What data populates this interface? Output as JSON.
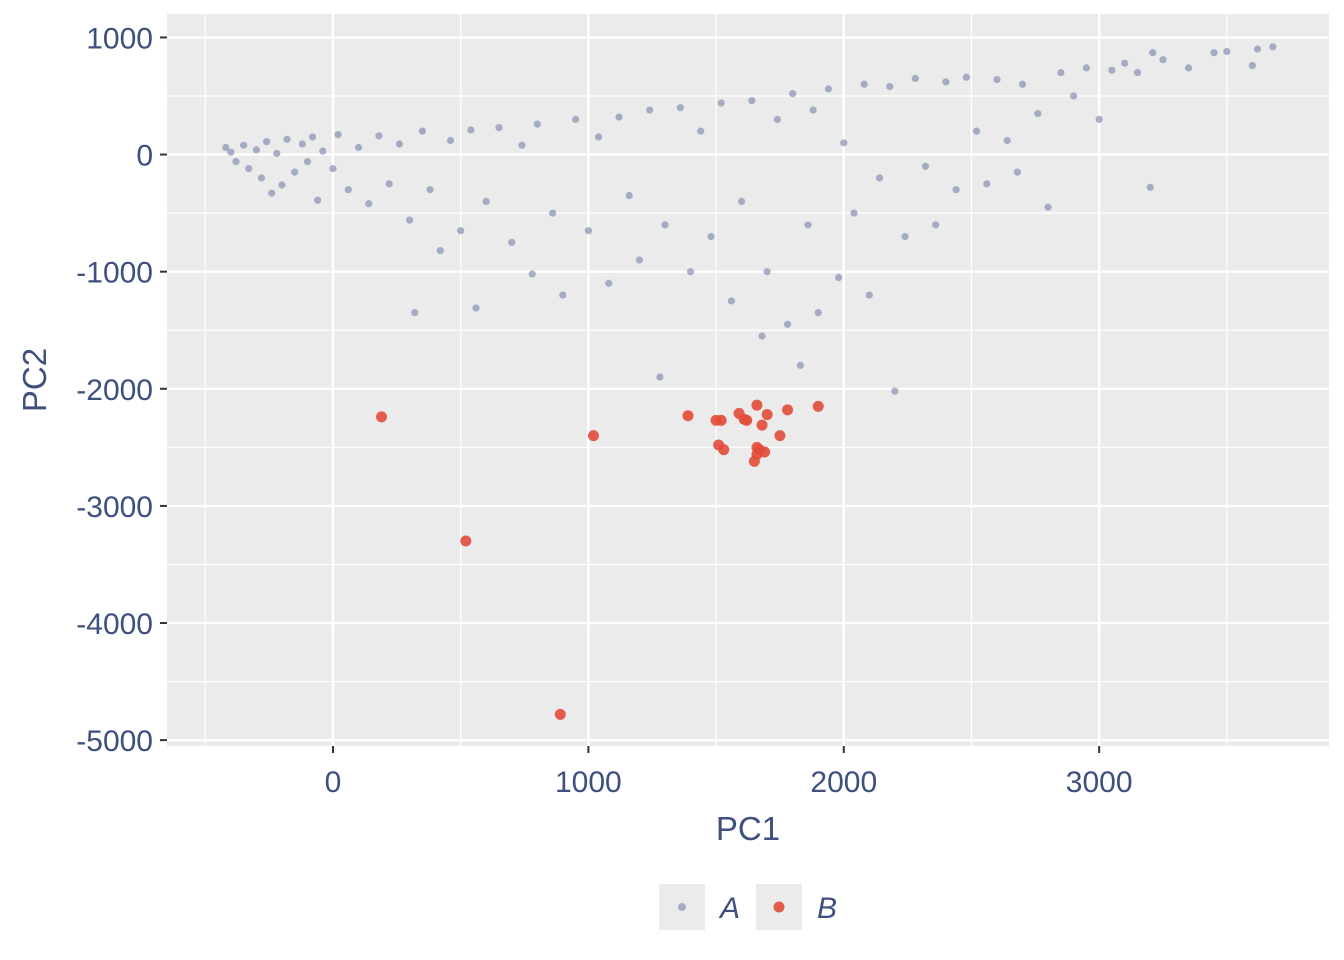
{
  "chart_data": {
    "type": "scatter",
    "title": "",
    "xlabel": "PC1",
    "ylabel": "PC2",
    "xlim": [
      -650,
      3900
    ],
    "ylim": [
      -5050,
      1200
    ],
    "x_major_ticks": [
      0,
      1000,
      2000,
      3000
    ],
    "x_minor_ticks": [
      -500,
      500,
      1500,
      2500,
      3500
    ],
    "y_major_ticks": [
      1000,
      0,
      -1000,
      -2000,
      -3000,
      -4000,
      -5000
    ],
    "y_minor_ticks": [
      500,
      -500,
      -1500,
      -2500,
      -3500,
      -4500
    ],
    "x_tick_labels": [
      "0",
      "1000",
      "2000",
      "3000"
    ],
    "y_tick_labels": [
      "1000",
      "0",
      "-1000",
      "-2000",
      "-3000",
      "-4000",
      "-5000"
    ],
    "grid": true,
    "panel_background": "#ebebeb",
    "legend_position": "bottom",
    "series": [
      {
        "name": "A",
        "color": "#8692b4",
        "point_size": "small",
        "alpha": 0.7,
        "note_dense": "dense wedge-shaped cloud of several thousand points; representative points listed",
        "points": [
          [
            -420,
            60
          ],
          [
            -400,
            20
          ],
          [
            -380,
            -60
          ],
          [
            -350,
            80
          ],
          [
            -330,
            -120
          ],
          [
            -300,
            40
          ],
          [
            -280,
            -200
          ],
          [
            -260,
            110
          ],
          [
            -240,
            -330
          ],
          [
            -220,
            10
          ],
          [
            -200,
            -260
          ],
          [
            -180,
            130
          ],
          [
            -150,
            -150
          ],
          [
            -120,
            90
          ],
          [
            -100,
            -60
          ],
          [
            -80,
            150
          ],
          [
            -60,
            -390
          ],
          [
            -40,
            30
          ],
          [
            0,
            -120
          ],
          [
            20,
            170
          ],
          [
            60,
            -300
          ],
          [
            100,
            60
          ],
          [
            140,
            -420
          ],
          [
            180,
            160
          ],
          [
            220,
            -250
          ],
          [
            260,
            90
          ],
          [
            300,
            -560
          ],
          [
            320,
            -1350
          ],
          [
            350,
            200
          ],
          [
            380,
            -300
          ],
          [
            420,
            -820
          ],
          [
            460,
            120
          ],
          [
            500,
            -650
          ],
          [
            540,
            210
          ],
          [
            560,
            -1310
          ],
          [
            600,
            -400
          ],
          [
            650,
            230
          ],
          [
            700,
            -750
          ],
          [
            740,
            80
          ],
          [
            780,
            -1020
          ],
          [
            800,
            260
          ],
          [
            860,
            -500
          ],
          [
            900,
            -1200
          ],
          [
            950,
            300
          ],
          [
            1000,
            -650
          ],
          [
            1040,
            150
          ],
          [
            1080,
            -1100
          ],
          [
            1120,
            320
          ],
          [
            1160,
            -350
          ],
          [
            1200,
            -900
          ],
          [
            1240,
            380
          ],
          [
            1280,
            -1900
          ],
          [
            1300,
            -600
          ],
          [
            1360,
            400
          ],
          [
            1400,
            -1000
          ],
          [
            1440,
            200
          ],
          [
            1480,
            -700
          ],
          [
            1520,
            440
          ],
          [
            1560,
            -1250
          ],
          [
            1600,
            -400
          ],
          [
            1640,
            460
          ],
          [
            1680,
            -1550
          ],
          [
            1700,
            -1000
          ],
          [
            1740,
            300
          ],
          [
            1780,
            -1450
          ],
          [
            1800,
            520
          ],
          [
            1830,
            -1800
          ],
          [
            1860,
            -600
          ],
          [
            1880,
            380
          ],
          [
            1900,
            -1350
          ],
          [
            1940,
            560
          ],
          [
            1980,
            -1050
          ],
          [
            2000,
            100
          ],
          [
            2040,
            -500
          ],
          [
            2080,
            600
          ],
          [
            2100,
            -1200
          ],
          [
            2140,
            -200
          ],
          [
            2180,
            580
          ],
          [
            2200,
            -2020
          ],
          [
            2240,
            -700
          ],
          [
            2280,
            650
          ],
          [
            2320,
            -100
          ],
          [
            2360,
            -600
          ],
          [
            2400,
            620
          ],
          [
            2440,
            -300
          ],
          [
            2480,
            660
          ],
          [
            2520,
            200
          ],
          [
            2560,
            -250
          ],
          [
            2600,
            640
          ],
          [
            2640,
            120
          ],
          [
            2680,
            -150
          ],
          [
            2700,
            600
          ],
          [
            2760,
            350
          ],
          [
            2800,
            -450
          ],
          [
            2850,
            700
          ],
          [
            2900,
            500
          ],
          [
            2950,
            740
          ],
          [
            3000,
            300
          ],
          [
            3050,
            720
          ],
          [
            3100,
            780
          ],
          [
            3150,
            700
          ],
          [
            3200,
            -280
          ],
          [
            3210,
            870
          ],
          [
            3250,
            810
          ],
          [
            3350,
            740
          ],
          [
            3450,
            870
          ],
          [
            3500,
            880
          ],
          [
            3600,
            760
          ],
          [
            3620,
            900
          ],
          [
            3680,
            920
          ]
        ]
      },
      {
        "name": "B",
        "color": "#e24b38",
        "point_size": "medium",
        "alpha": 0.9,
        "points": [
          [
            190,
            -2240
          ],
          [
            520,
            -3300
          ],
          [
            890,
            -4780
          ],
          [
            1020,
            -2400
          ],
          [
            1390,
            -2230
          ],
          [
            1500,
            -2270
          ],
          [
            1520,
            -2270
          ],
          [
            1510,
            -2480
          ],
          [
            1530,
            -2520
          ],
          [
            1590,
            -2210
          ],
          [
            1610,
            -2260
          ],
          [
            1620,
            -2270
          ],
          [
            1660,
            -2140
          ],
          [
            1680,
            -2310
          ],
          [
            1700,
            -2220
          ],
          [
            1660,
            -2500
          ],
          [
            1670,
            -2520
          ],
          [
            1690,
            -2540
          ],
          [
            1660,
            -2560
          ],
          [
            1650,
            -2620
          ],
          [
            1750,
            -2400
          ],
          [
            1780,
            -2180
          ],
          [
            1900,
            -2150
          ]
        ]
      }
    ]
  }
}
